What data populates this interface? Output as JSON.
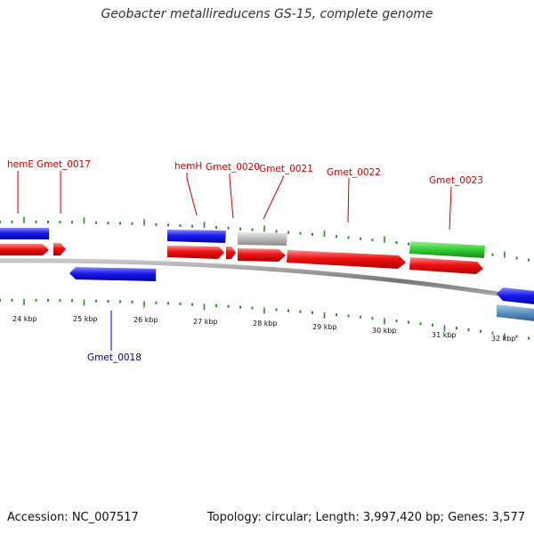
{
  "title": "Geobacter metallireducens GS-15, complete genome",
  "footer": {
    "accession": "Accession: NC_007517",
    "summary": "Topology: circular; Length: 3,997,420 bp; Genes: 3,577"
  },
  "colors": {
    "tick": "#2e8b2e",
    "backbone": "#888888",
    "forward_label": "#cc0000",
    "reverse_label": "#0000aa",
    "red_gene": "#ee1111",
    "blue_gene": "#1a1aee",
    "gray_gene": "#b8b8b8",
    "green_gene": "#33cc33",
    "steel_gene": "#5a8fc0"
  },
  "scale_labels": [
    "24 kbp",
    "25 kbp",
    "26 kbp",
    "27 kbp",
    "28 kbp",
    "29 kbp",
    "30 kbp",
    "31 kbp",
    "32 kbp"
  ],
  "gene_labels": {
    "top": [
      "hemE",
      "Gmet_0017",
      "hemH",
      "Gmet_0020",
      "Gmet_0021",
      "Gmet_0022",
      "Gmet_0023"
    ],
    "bottom": [
      "Gmet_0018"
    ]
  }
}
